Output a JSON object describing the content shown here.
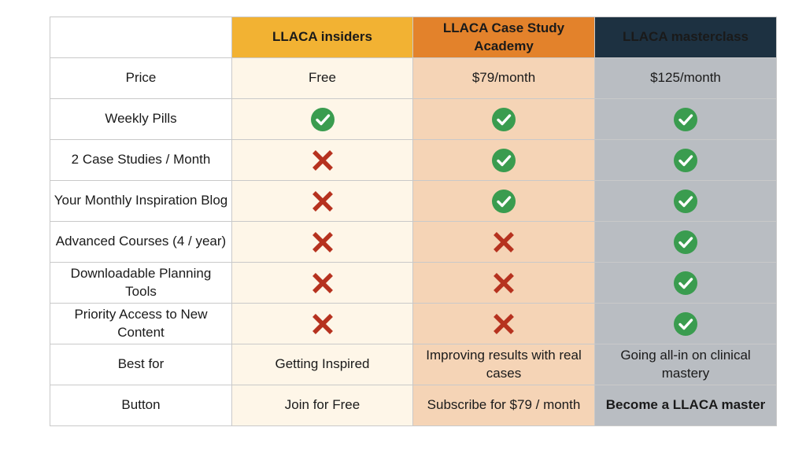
{
  "colors": {
    "insiders_header": "#f2b233",
    "academy_header": "#e3822b",
    "masterclass_header": "#1d3141",
    "insiders_cell": "#fef6e8",
    "academy_cell": "#f5d4b6",
    "masterclass_cell": "#b9bdc2",
    "check": "#3a9c4f",
    "cross": "#b6321f"
  },
  "columns": [
    "LLACA insiders",
    "LLACA Case Study Academy",
    "LLACA masterclass"
  ],
  "rows": [
    {
      "label": "Price",
      "cells": [
        "Free",
        "$79/month",
        "$125/month"
      ]
    },
    {
      "label": "Weekly Pills",
      "cells": [
        "check-icon",
        "check-icon",
        "check-icon"
      ]
    },
    {
      "label": "2 Case Studies / Month",
      "cells": [
        "cross-icon",
        "check-icon",
        "check-icon"
      ]
    },
    {
      "label": "Your Monthly Inspiration Blog",
      "cells": [
        "cross-icon",
        "check-icon",
        "check-icon"
      ]
    },
    {
      "label": "Advanced Courses (4 / year)",
      "cells": [
        "cross-icon",
        "cross-icon",
        "check-icon"
      ]
    },
    {
      "label": "Downloadable Planning Tools",
      "cells": [
        "cross-icon",
        "cross-icon",
        "check-icon"
      ]
    },
    {
      "label": "Priority Access to New Content",
      "cells": [
        "cross-icon",
        "cross-icon",
        "check-icon"
      ]
    },
    {
      "label": "Best for",
      "cells": [
        "Getting Inspired",
        "Improving results with real cases",
        "Going all-in on clinical mastery"
      ]
    },
    {
      "label": "Button",
      "cells": [
        "Join for Free",
        "Subscribe for $79 / month",
        "Become a LLACA master"
      ]
    }
  ]
}
